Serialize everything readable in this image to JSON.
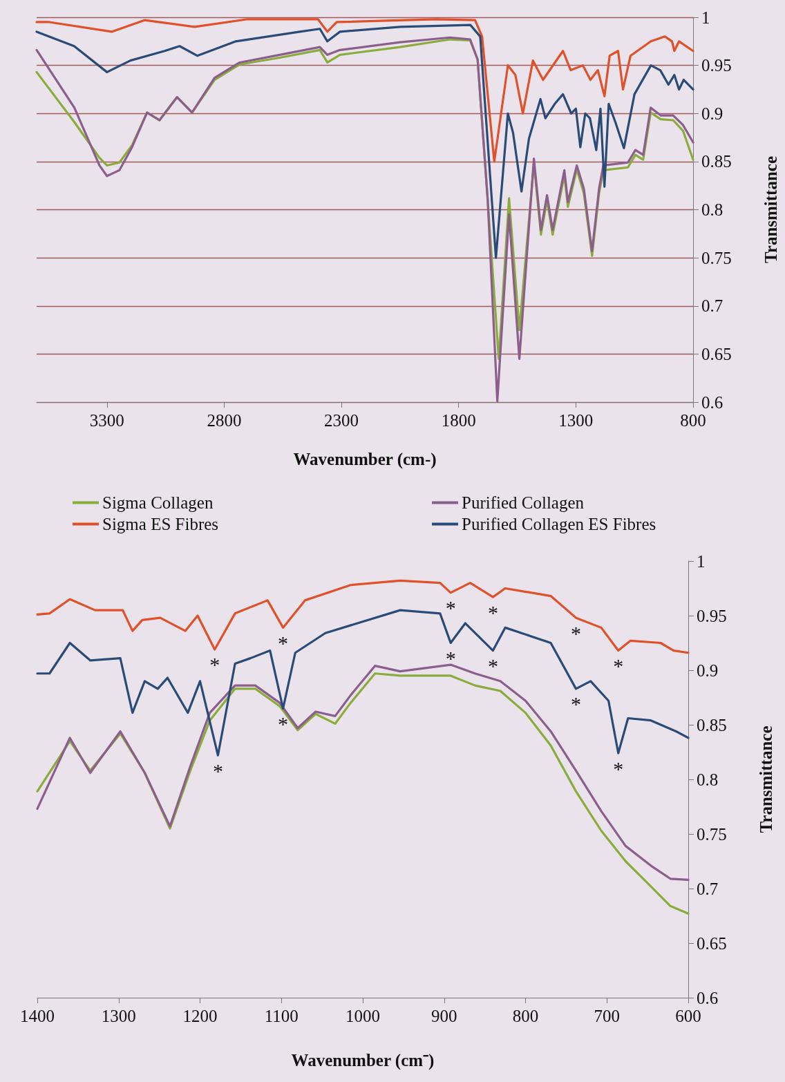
{
  "chart_data": [
    {
      "type": "line",
      "xlabel": "Wavenumber (cm-)",
      "ylabel": "Transmittance",
      "xlim": [
        3600,
        800
      ],
      "xticks": [
        3300,
        2800,
        2300,
        1800,
        1300,
        800
      ],
      "ylim": [
        0.6,
        1
      ],
      "yticks": [
        0.6,
        0.65,
        0.7,
        0.75,
        0.8,
        0.85,
        0.9,
        0.95,
        1
      ],
      "grid": "y",
      "legend": "bottom",
      "marker": "none",
      "line_style": "solid",
      "series": [
        {
          "name": "Sigma Collagen",
          "color": "#8aac3c",
          "x": [
            3600,
            3439,
            3332,
            3300,
            3247,
            3193,
            3129,
            3076,
            3001,
            2937,
            2841,
            2734,
            2563,
            2392,
            2360,
            2306,
            2050,
            1836,
            1751,
            1719,
            1676,
            1629,
            1585,
            1541,
            1479,
            1449,
            1423,
            1399,
            1349,
            1334,
            1296,
            1266,
            1231,
            1201,
            1183,
            1078,
            1046,
            1013,
            981,
            938,
            885,
            843,
            800
          ],
          "values": [
            0.943,
            0.891,
            0.854,
            0.846,
            0.849,
            0.867,
            0.901,
            0.893,
            0.917,
            0.901,
            0.935,
            0.951,
            0.958,
            0.966,
            0.953,
            0.961,
            0.969,
            0.977,
            0.976,
            0.956,
            0.81,
            0.645,
            0.812,
            0.675,
            0.848,
            0.774,
            0.81,
            0.774,
            0.836,
            0.803,
            0.842,
            0.817,
            0.752,
            0.817,
            0.841,
            0.844,
            0.857,
            0.852,
            0.901,
            0.894,
            0.893,
            0.882,
            0.852
          ]
        },
        {
          "name": "Purified Collagen",
          "color": "#8b5e8c",
          "x": [
            3600,
            3439,
            3332,
            3300,
            3247,
            3193,
            3129,
            3076,
            3001,
            2937,
            2841,
            2734,
            2563,
            2392,
            2360,
            2306,
            2050,
            1836,
            1751,
            1719,
            1676,
            1635,
            1585,
            1541,
            1479,
            1449,
            1423,
            1399,
            1349,
            1334,
            1296,
            1266,
            1231,
            1201,
            1183,
            1078,
            1046,
            1013,
            981,
            938,
            885,
            843,
            800
          ],
          "values": [
            0.966,
            0.906,
            0.846,
            0.835,
            0.841,
            0.865,
            0.901,
            0.893,
            0.917,
            0.901,
            0.937,
            0.953,
            0.961,
            0.969,
            0.961,
            0.966,
            0.974,
            0.979,
            0.977,
            0.956,
            0.81,
            0.601,
            0.795,
            0.645,
            0.853,
            0.779,
            0.815,
            0.779,
            0.841,
            0.808,
            0.846,
            0.822,
            0.757,
            0.822,
            0.846,
            0.849,
            0.862,
            0.857,
            0.906,
            0.898,
            0.898,
            0.888,
            0.87
          ]
        },
        {
          "name": "Sigma ES Fibres",
          "color": "#e0512a",
          "x": [
            3600,
            3546,
            3280,
            3140,
            2926,
            2700,
            2400,
            2360,
            2320,
            1900,
            1730,
            1700,
            1648,
            1590,
            1558,
            1526,
            1483,
            1440,
            1355,
            1322,
            1270,
            1238,
            1206,
            1178,
            1156,
            1120,
            1099,
            1067,
            980,
            920,
            890,
            880,
            860,
            800
          ],
          "values": [
            0.995,
            0.995,
            0.985,
            0.997,
            0.99,
            0.998,
            0.998,
            0.985,
            0.995,
            0.998,
            0.997,
            0.98,
            0.85,
            0.95,
            0.94,
            0.9,
            0.955,
            0.935,
            0.965,
            0.945,
            0.95,
            0.935,
            0.945,
            0.918,
            0.96,
            0.965,
            0.925,
            0.96,
            0.975,
            0.98,
            0.975,
            0.965,
            0.975,
            0.965
          ]
        },
        {
          "name": "Purified Collagen ES Fibres",
          "color": "#2a4a78",
          "x": [
            3600,
            3440,
            3300,
            3200,
            3054,
            2990,
            2915,
            2750,
            2477,
            2392,
            2360,
            2306,
            2050,
            1750,
            1708,
            1641,
            1590,
            1568,
            1532,
            1500,
            1451,
            1430,
            1390,
            1355,
            1320,
            1300,
            1281,
            1260,
            1240,
            1213,
            1195,
            1178,
            1160,
            1130,
            1095,
            1050,
            980,
            940,
            905,
            880,
            860,
            840,
            800
          ],
          "values": [
            0.985,
            0.97,
            0.943,
            0.955,
            0.965,
            0.97,
            0.96,
            0.975,
            0.985,
            0.988,
            0.975,
            0.985,
            0.99,
            0.992,
            0.98,
            0.75,
            0.9,
            0.88,
            0.819,
            0.874,
            0.915,
            0.895,
            0.91,
            0.92,
            0.9,
            0.905,
            0.865,
            0.9,
            0.895,
            0.862,
            0.905,
            0.824,
            0.91,
            0.89,
            0.864,
            0.92,
            0.95,
            0.945,
            0.93,
            0.94,
            0.925,
            0.935,
            0.925
          ]
        }
      ]
    },
    {
      "type": "line",
      "xlabel": "Wavenumber (cm⁻)",
      "ylabel": "Transmittance",
      "xlim": [
        1400,
        600
      ],
      "xticks": [
        1400,
        1300,
        1200,
        1100,
        1000,
        900,
        800,
        700,
        600
      ],
      "ylim": [
        0.6,
        1
      ],
      "yticks": [
        0.6,
        0.65,
        0.7,
        0.75,
        0.8,
        0.85,
        0.9,
        0.95,
        1
      ],
      "grid": false,
      "marker": "none",
      "line_style": "solid",
      "series": [
        {
          "color": "#8aac3c",
          "x": [
            1400,
            1360,
            1335,
            1298,
            1268,
            1237,
            1212,
            1188,
            1157,
            1132,
            1102,
            1080,
            1058,
            1034,
            1015,
            985,
            954,
            892,
            862,
            831,
            800,
            769,
            738,
            707,
            677,
            646,
            622,
            600
          ],
          "values": [
            0.789,
            0.835,
            0.808,
            0.842,
            0.806,
            0.755,
            0.808,
            0.854,
            0.883,
            0.883,
            0.867,
            0.845,
            0.86,
            0.851,
            0.87,
            0.897,
            0.895,
            0.895,
            0.886,
            0.881,
            0.861,
            0.831,
            0.789,
            0.753,
            0.725,
            0.702,
            0.684,
            0.677
          ]
        },
        {
          "color": "#8b5e8c",
          "x": [
            1400,
            1360,
            1335,
            1298,
            1268,
            1237,
            1212,
            1188,
            1157,
            1132,
            1102,
            1080,
            1058,
            1034,
            1015,
            985,
            954,
            892,
            862,
            831,
            800,
            769,
            738,
            707,
            677,
            646,
            622,
            600
          ],
          "values": [
            0.773,
            0.838,
            0.806,
            0.844,
            0.806,
            0.757,
            0.812,
            0.861,
            0.886,
            0.886,
            0.87,
            0.847,
            0.862,
            0.858,
            0.877,
            0.904,
            0.899,
            0.905,
            0.897,
            0.89,
            0.872,
            0.844,
            0.808,
            0.771,
            0.739,
            0.721,
            0.709,
            0.708
          ]
        },
        {
          "color": "#e0512a",
          "x": [
            1400,
            1385,
            1360,
            1329,
            1295,
            1283,
            1271,
            1249,
            1218,
            1203,
            1182,
            1157,
            1117,
            1098,
            1071,
            1015,
            954,
            905,
            892,
            868,
            840,
            825,
            769,
            738,
            707,
            686,
            671,
            634,
            618,
            600
          ],
          "values": [
            0.951,
            0.952,
            0.965,
            0.955,
            0.955,
            0.936,
            0.946,
            0.948,
            0.936,
            0.95,
            0.919,
            0.952,
            0.964,
            0.939,
            0.964,
            0.978,
            0.982,
            0.98,
            0.971,
            0.98,
            0.967,
            0.975,
            0.968,
            0.948,
            0.939,
            0.918,
            0.927,
            0.925,
            0.918,
            0.916
          ]
        },
        {
          "color": "#2a4a78",
          "x": [
            1400,
            1385,
            1360,
            1335,
            1298,
            1283,
            1268,
            1252,
            1240,
            1215,
            1200,
            1178,
            1157,
            1138,
            1114,
            1098,
            1083,
            1046,
            954,
            905,
            892,
            874,
            840,
            825,
            769,
            738,
            720,
            698,
            686,
            674,
            646,
            615,
            600
          ],
          "values": [
            0.897,
            0.897,
            0.925,
            0.909,
            0.911,
            0.861,
            0.89,
            0.883,
            0.893,
            0.861,
            0.89,
            0.822,
            0.906,
            0.911,
            0.918,
            0.865,
            0.916,
            0.934,
            0.955,
            0.952,
            0.925,
            0.943,
            0.918,
            0.939,
            0.925,
            0.883,
            0.89,
            0.872,
            0.824,
            0.856,
            0.854,
            0.844,
            0.838
          ]
        }
      ],
      "annotations": [
        {
          "text": "*",
          "x": 1182,
          "y": 0.919
        },
        {
          "text": "*",
          "x": 1098,
          "y": 0.939
        },
        {
          "text": "*",
          "x": 892,
          "y": 0.971
        },
        {
          "text": "*",
          "x": 840,
          "y": 0.967
        },
        {
          "text": "*",
          "x": 738,
          "y": 0.948
        },
        {
          "text": "*",
          "x": 686,
          "y": 0.918
        },
        {
          "text": "*",
          "x": 1178,
          "y": 0.822
        },
        {
          "text": "*",
          "x": 1098,
          "y": 0.865
        },
        {
          "text": "*",
          "x": 892,
          "y": 0.925
        },
        {
          "text": "*",
          "x": 840,
          "y": 0.918
        },
        {
          "text": "*",
          "x": 738,
          "y": 0.883
        },
        {
          "text": "*",
          "x": 686,
          "y": 0.824
        }
      ]
    }
  ]
}
